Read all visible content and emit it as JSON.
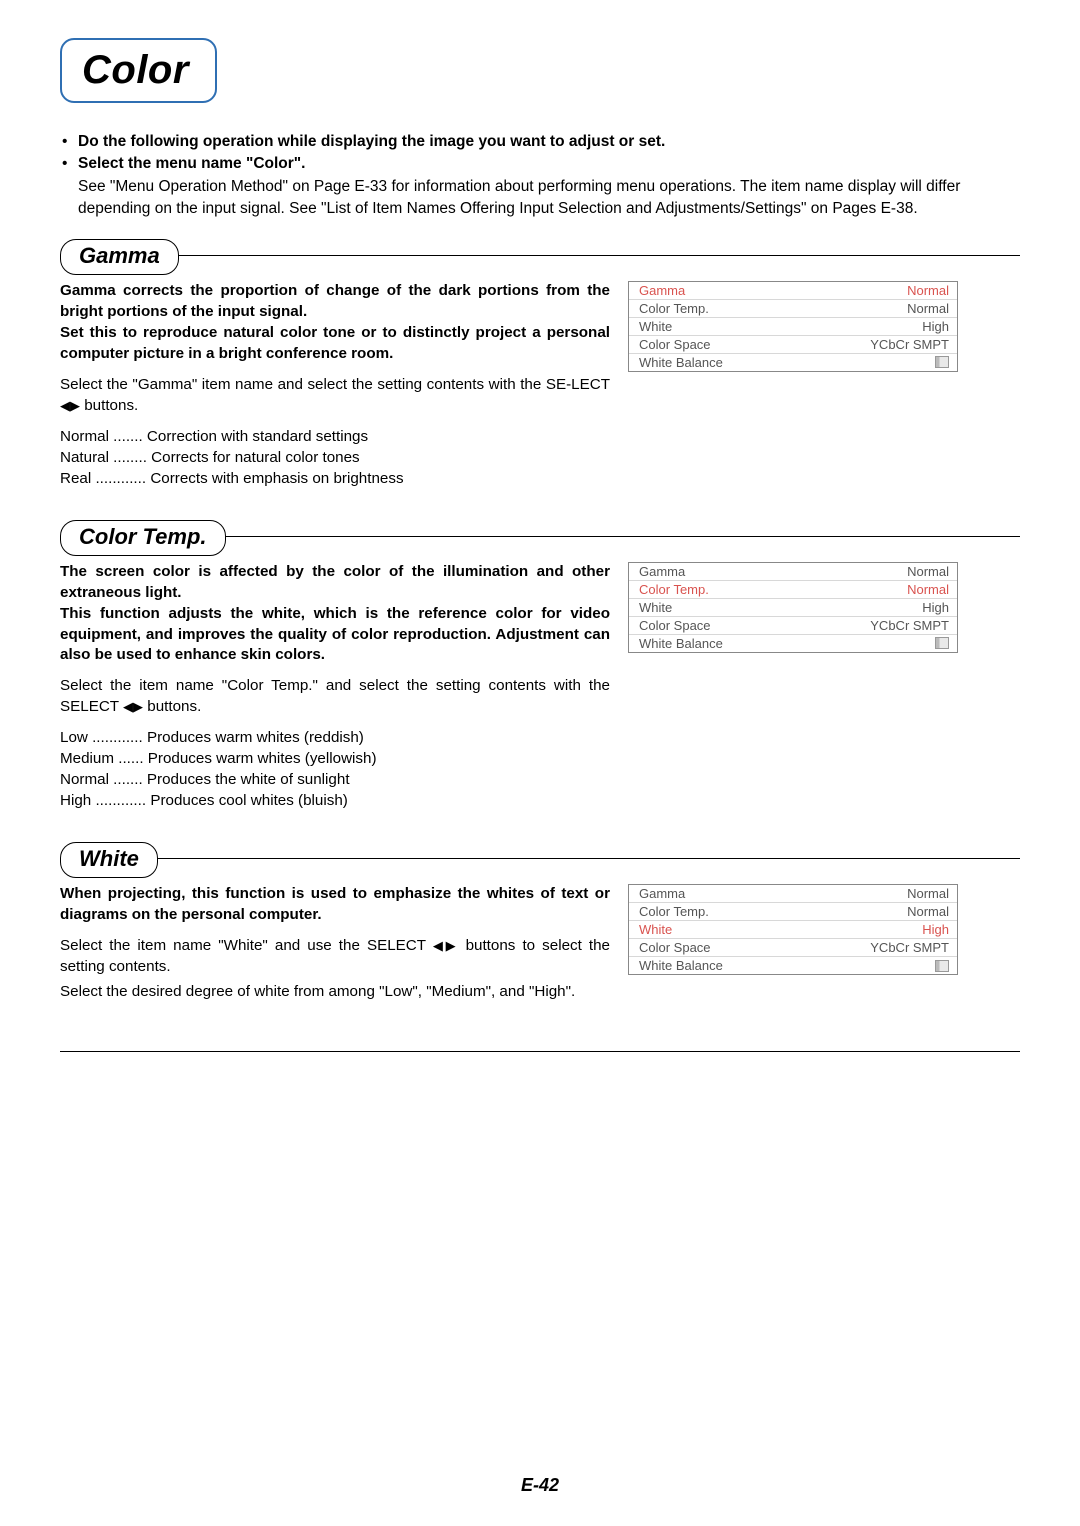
{
  "page": {
    "title": "Color",
    "footer": "E-42"
  },
  "intro": {
    "b1": "Do the following operation while displaying the image you want to adjust or set.",
    "b2": "Select the menu name \"Color\".",
    "p1": "See \"Menu Operation Method\" on Page E-33 for information about performing menu operations. The item name display will differ depending on the input signal. See \"List of Item Names Offering Input Selection and Adjustments/Settings\" on Pages E-38."
  },
  "sections": {
    "gamma": {
      "label": "Gamma",
      "bold": "Gamma corrects the proportion of change of the dark portions from the bright portions of the input signal.\nSet this to reproduce natural color tone or to distinctly project a personal computer picture in a bright conference room.",
      "p1a": "Select the \"Gamma\" item name and select the setting contents with the SE-LECT ",
      "p1b": " buttons.",
      "defs": [
        {
          "k": "Normal ....... ",
          "v": "Correction with standard settings"
        },
        {
          "k": "Natural ........ ",
          "v": "Corrects for natural color tones"
        },
        {
          "k": "Real ............ ",
          "v": "Corrects with emphasis on brightness"
        }
      ],
      "menu": {
        "selectedIndex": 0,
        "rows": [
          {
            "l": "Gamma",
            "r": "Normal"
          },
          {
            "l": "Color Temp.",
            "r": "Normal"
          },
          {
            "l": "White",
            "r": "High"
          },
          {
            "l": "Color Space",
            "r": "YCbCr SMPT"
          },
          {
            "l": "White Balance",
            "r": "__slider__"
          }
        ]
      }
    },
    "colortemp": {
      "label": "Color Temp.",
      "bold": "The screen color is affected by the color of the illumination and other extraneous light.\nThis function adjusts the white, which is the reference color for video equipment, and improves the quality of color reproduction. Adjustment can also be used to enhance skin colors.",
      "p1a": "Select the item name \"Color Temp.\" and select the setting contents with the SELECT ",
      "p1b": " buttons.",
      "defs": [
        {
          "k": "Low ............ ",
          "v": "Produces warm whites (reddish)"
        },
        {
          "k": "Medium ...... ",
          "v": "Produces warm whites (yellowish)"
        },
        {
          "k": "Normal ....... ",
          "v": "Produces the white of sunlight"
        },
        {
          "k": "High ............ ",
          "v": "Produces cool whites (bluish)"
        }
      ],
      "menu": {
        "selectedIndex": 1,
        "rows": [
          {
            "l": "Gamma",
            "r": "Normal"
          },
          {
            "l": "Color Temp.",
            "r": "Normal"
          },
          {
            "l": "White",
            "r": "High"
          },
          {
            "l": "Color Space",
            "r": "YCbCr SMPT"
          },
          {
            "l": "White Balance",
            "r": "__slider__"
          }
        ]
      }
    },
    "white": {
      "label": "White",
      "bold": "When projecting, this function is used to emphasize the whites of text or diagrams on the personal computer.",
      "p1a": "Select the item name \"White\" and use the SELECT ",
      "p1b": " buttons to select the setting contents.",
      "p2": "Select the desired degree of white from among \"Low\", \"Medium\", and \"High\".",
      "menu": {
        "selectedIndex": 2,
        "rows": [
          {
            "l": "Gamma",
            "r": "Normal"
          },
          {
            "l": "Color Temp.",
            "r": "Normal"
          },
          {
            "l": "White",
            "r": "High"
          },
          {
            "l": "Color Space",
            "r": "YCbCr SMPT"
          },
          {
            "l": "White Balance",
            "r": "__slider__"
          }
        ]
      }
    }
  },
  "glyphs": {
    "lr_arrows": "◀▶"
  }
}
